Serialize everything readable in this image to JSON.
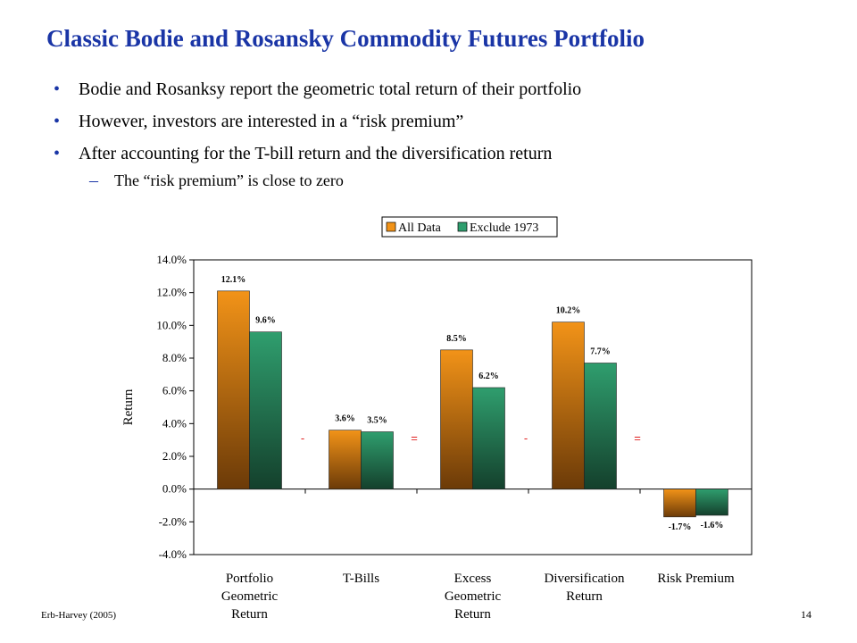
{
  "slide": {
    "title": "Classic Bodie and Rosansky Commodity Futures Portfolio",
    "bullets": [
      "Bodie and Rosanksy report the geometric total return of their portfolio",
      "However, investors are interested in a “risk premium”",
      "After accounting for the T-bill return and the diversification return"
    ],
    "sub_bullet": "The “risk premium” is close to zero",
    "footer_left": "Erb-Harvey (2005)",
    "footer_right": "14"
  },
  "chart_data": {
    "type": "bar",
    "title": "",
    "xlabel": "",
    "ylabel": "Return",
    "ylim": [
      -4.0,
      14.0
    ],
    "yticks": [
      "14.0%",
      "12.0%",
      "10.0%",
      "8.0%",
      "6.0%",
      "4.0%",
      "2.0%",
      "0.0%",
      "-2.0%",
      "-4.0%"
    ],
    "categories": [
      [
        "Portfolio",
        "Geometric",
        "Return"
      ],
      [
        "T-Bills"
      ],
      [
        "Excess",
        "Geometric",
        "Return"
      ],
      [
        "Diversification",
        "Return"
      ],
      [
        "Risk Premium"
      ]
    ],
    "series": [
      {
        "name": "All Data",
        "values": [
          12.1,
          3.6,
          8.5,
          10.2,
          -1.7
        ],
        "labels": [
          "12.1%",
          "3.6%",
          "8.5%",
          "10.2%",
          "-1.7%"
        ],
        "color": "#f29318"
      },
      {
        "name": "Exclude 1973",
        "values": [
          9.6,
          3.5,
          6.2,
          7.7,
          -1.6
        ],
        "labels": [
          "9.6%",
          "3.5%",
          "6.2%",
          "7.7%",
          "-1.6%"
        ],
        "color": "#2f9e6e"
      }
    ],
    "operators": [
      "-",
      "=",
      "-",
      "="
    ],
    "legend_position": "top",
    "grid": false
  }
}
